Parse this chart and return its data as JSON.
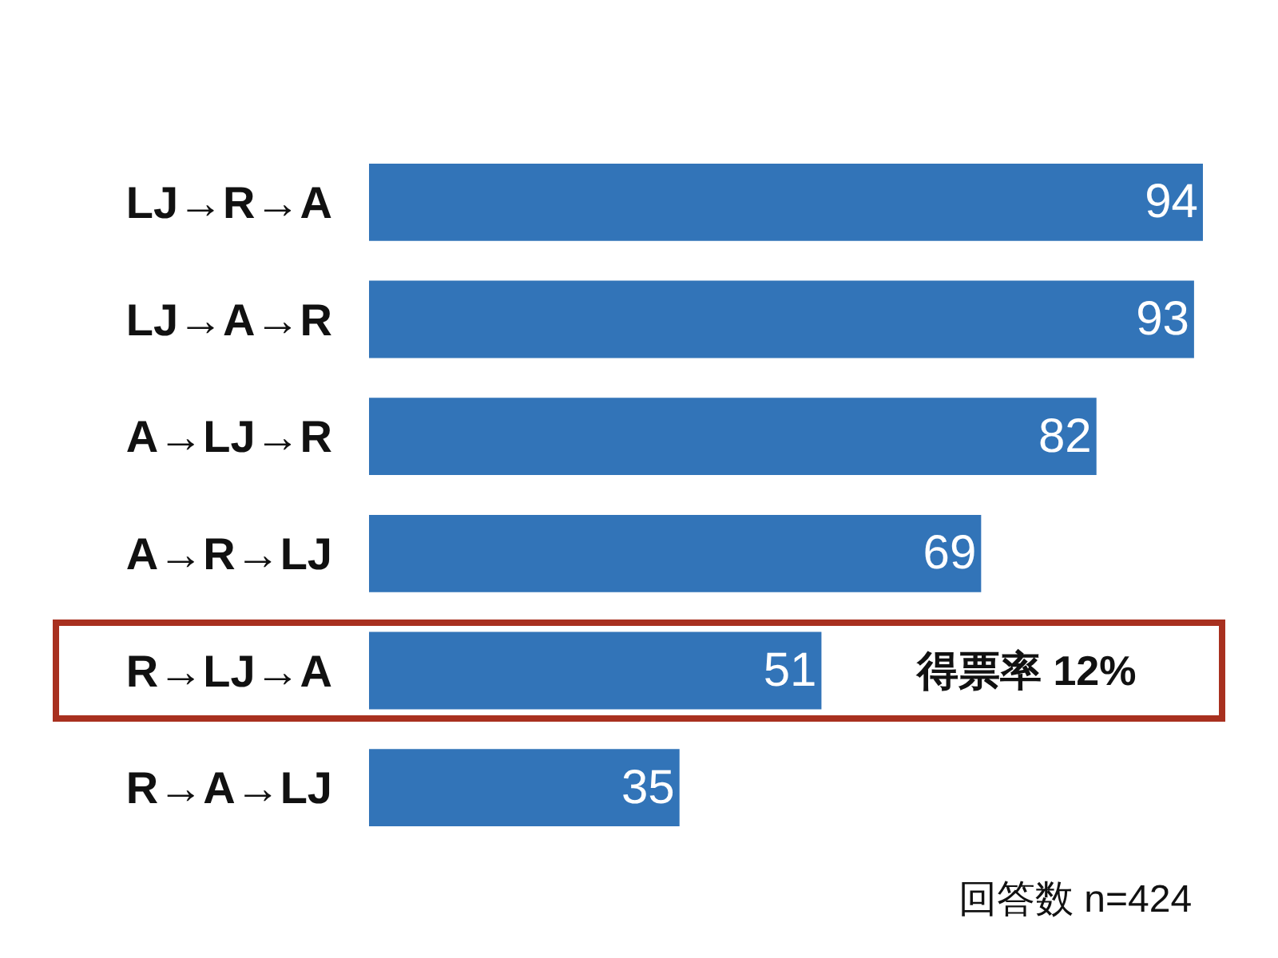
{
  "chart_data": {
    "type": "bar",
    "orientation": "horizontal",
    "categories": [
      "LJ→R→A",
      "LJ→A→R",
      "A→LJ→R",
      "A→R→LJ",
      "R→LJ→A",
      "R→A→LJ"
    ],
    "values": [
      94,
      93,
      82,
      69,
      51,
      35
    ],
    "color": "#3274b8",
    "data_labels": true,
    "grid": false,
    "annotations": [
      "得票率 12%",
      "回答数 n=424"
    ]
  }
}
